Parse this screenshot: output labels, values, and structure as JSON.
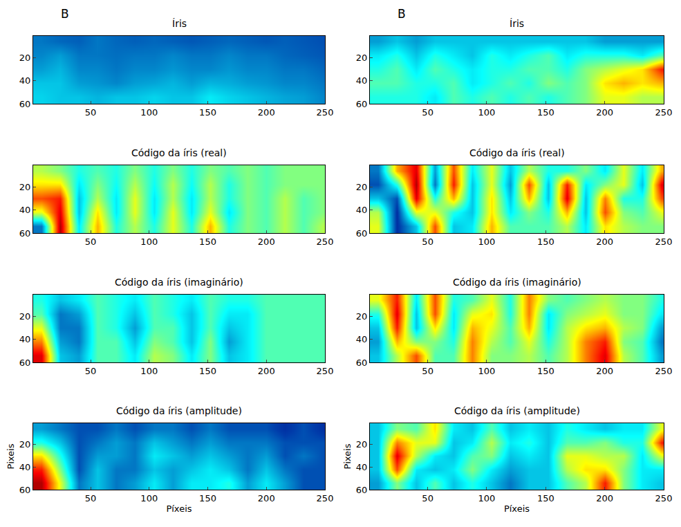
{
  "panel_labels": [
    "B",
    "B"
  ],
  "chart_data": [
    {
      "type": "heatmap",
      "title": "Íris",
      "xlim": [
        1,
        250
      ],
      "ylim": [
        1,
        60
      ],
      "xticks": [
        50,
        100,
        150,
        200,
        250
      ],
      "yticks": [
        20,
        40,
        60
      ],
      "zlim": [
        0,
        1
      ],
      "x": [
        8,
        24,
        40,
        56,
        72,
        88,
        104,
        120,
        136,
        152,
        168,
        184,
        200,
        216,
        232,
        248
      ],
      "y": [
        6,
        18,
        30,
        42,
        54
      ],
      "z": [
        [
          0.2,
          0.18,
          0.17,
          0.2,
          0.18,
          0.17,
          0.18,
          0.17,
          0.16,
          0.17,
          0.18,
          0.17,
          0.16,
          0.17,
          0.16,
          0.15
        ],
        [
          0.22,
          0.25,
          0.2,
          0.2,
          0.19,
          0.2,
          0.2,
          0.22,
          0.2,
          0.2,
          0.22,
          0.2,
          0.2,
          0.18,
          0.17,
          0.16
        ],
        [
          0.25,
          0.28,
          0.22,
          0.22,
          0.2,
          0.22,
          0.22,
          0.24,
          0.22,
          0.22,
          0.24,
          0.22,
          0.22,
          0.2,
          0.2,
          0.18
        ],
        [
          0.3,
          0.3,
          0.25,
          0.24,
          0.22,
          0.25,
          0.26,
          0.28,
          0.25,
          0.28,
          0.27,
          0.25,
          0.24,
          0.22,
          0.22,
          0.2
        ],
        [
          0.32,
          0.3,
          0.3,
          0.28,
          0.3,
          0.3,
          0.32,
          0.3,
          0.3,
          0.35,
          0.32,
          0.3,
          0.28,
          0.26,
          0.25,
          0.22
        ]
      ]
    },
    {
      "type": "heatmap",
      "title": "Código da íris (real)",
      "xlim": [
        1,
        250
      ],
      "ylim": [
        1,
        60
      ],
      "xticks": [
        50,
        100,
        150,
        200,
        250
      ],
      "yticks": [
        20,
        40,
        60
      ],
      "zlim": [
        0,
        1
      ],
      "x": [
        8,
        24,
        40,
        56,
        72,
        88,
        104,
        120,
        136,
        152,
        168,
        184,
        200,
        216,
        232,
        248
      ],
      "y": [
        6,
        18,
        30,
        42,
        54
      ],
      "z": [
        [
          0.55,
          0.5,
          0.4,
          0.45,
          0.4,
          0.5,
          0.4,
          0.5,
          0.4,
          0.5,
          0.45,
          0.5,
          0.45,
          0.5,
          0.5,
          0.5
        ],
        [
          0.65,
          0.65,
          0.35,
          0.5,
          0.38,
          0.55,
          0.38,
          0.55,
          0.38,
          0.55,
          0.4,
          0.5,
          0.45,
          0.5,
          0.5,
          0.5
        ],
        [
          0.8,
          0.85,
          0.3,
          0.55,
          0.35,
          0.6,
          0.35,
          0.55,
          0.35,
          0.55,
          0.4,
          0.5,
          0.45,
          0.55,
          0.45,
          0.5
        ],
        [
          0.6,
          0.9,
          0.3,
          0.65,
          0.35,
          0.6,
          0.35,
          0.6,
          0.35,
          0.6,
          0.35,
          0.5,
          0.45,
          0.55,
          0.45,
          0.5
        ],
        [
          0.2,
          0.95,
          0.35,
          0.7,
          0.4,
          0.55,
          0.4,
          0.6,
          0.4,
          0.7,
          0.4,
          0.5,
          0.45,
          0.55,
          0.45,
          0.55
        ]
      ]
    },
    {
      "type": "heatmap",
      "title": "Código da íris (imaginário)",
      "xlim": [
        1,
        250
      ],
      "ylim": [
        1,
        60
      ],
      "xticks": [
        50,
        100,
        150,
        200,
        250
      ],
      "yticks": [
        20,
        40,
        60
      ],
      "zlim": [
        0,
        1
      ],
      "x": [
        8,
        24,
        40,
        56,
        72,
        88,
        104,
        120,
        136,
        152,
        168,
        184,
        200,
        216,
        232,
        248
      ],
      "y": [
        6,
        18,
        30,
        42,
        54
      ],
      "z": [
        [
          0.4,
          0.3,
          0.35,
          0.45,
          0.4,
          0.35,
          0.45,
          0.4,
          0.35,
          0.45,
          0.4,
          0.4,
          0.45,
          0.45,
          0.45,
          0.45
        ],
        [
          0.45,
          0.2,
          0.25,
          0.45,
          0.4,
          0.3,
          0.45,
          0.4,
          0.3,
          0.45,
          0.35,
          0.35,
          0.45,
          0.45,
          0.45,
          0.45
        ],
        [
          0.6,
          0.2,
          0.2,
          0.45,
          0.4,
          0.25,
          0.45,
          0.45,
          0.3,
          0.45,
          0.3,
          0.35,
          0.45,
          0.45,
          0.45,
          0.45
        ],
        [
          0.75,
          0.25,
          0.2,
          0.45,
          0.45,
          0.3,
          0.5,
          0.45,
          0.3,
          0.5,
          0.25,
          0.35,
          0.45,
          0.45,
          0.45,
          0.45
        ],
        [
          0.9,
          0.3,
          0.25,
          0.45,
          0.45,
          0.35,
          0.55,
          0.5,
          0.35,
          0.5,
          0.3,
          0.35,
          0.45,
          0.45,
          0.45,
          0.45
        ]
      ]
    },
    {
      "type": "heatmap",
      "title": "Código da íris (amplitude)",
      "xlabel": "Píxeis",
      "ylabel": "Pixeis",
      "xlim": [
        1,
        250
      ],
      "ylim": [
        1,
        60
      ],
      "xticks": [
        50,
        100,
        150,
        200,
        250
      ],
      "yticks": [
        20,
        40,
        60
      ],
      "zlim": [
        0,
        1
      ],
      "x": [
        8,
        24,
        40,
        56,
        72,
        88,
        104,
        120,
        136,
        152,
        168,
        184,
        200,
        216,
        232,
        248
      ],
      "y": [
        6,
        18,
        30,
        42,
        54
      ],
      "z": [
        [
          0.25,
          0.2,
          0.15,
          0.15,
          0.2,
          0.15,
          0.2,
          0.2,
          0.15,
          0.2,
          0.15,
          0.15,
          0.15,
          0.1,
          0.15,
          0.1
        ],
        [
          0.4,
          0.3,
          0.15,
          0.2,
          0.25,
          0.2,
          0.3,
          0.25,
          0.2,
          0.25,
          0.2,
          0.2,
          0.2,
          0.15,
          0.15,
          0.15
        ],
        [
          0.65,
          0.4,
          0.15,
          0.25,
          0.25,
          0.2,
          0.35,
          0.3,
          0.25,
          0.3,
          0.25,
          0.2,
          0.25,
          0.15,
          0.2,
          0.15
        ],
        [
          0.85,
          0.5,
          0.15,
          0.3,
          0.2,
          0.2,
          0.3,
          0.25,
          0.3,
          0.35,
          0.3,
          0.2,
          0.3,
          0.2,
          0.15,
          0.15
        ],
        [
          0.95,
          0.6,
          0.2,
          0.3,
          0.2,
          0.25,
          0.35,
          0.25,
          0.35,
          0.35,
          0.4,
          0.25,
          0.35,
          0.25,
          0.15,
          0.15
        ]
      ]
    },
    {
      "type": "heatmap",
      "title": "Íris",
      "xlim": [
        1,
        250
      ],
      "ylim": [
        1,
        60
      ],
      "xticks": [
        50,
        100,
        150,
        200,
        250
      ],
      "yticks": [
        20,
        40,
        60
      ],
      "zlim": [
        0,
        1
      ],
      "x": [
        8,
        24,
        40,
        56,
        72,
        88,
        104,
        120,
        136,
        152,
        168,
        184,
        200,
        216,
        232,
        248
      ],
      "y": [
        6,
        18,
        30,
        42,
        54
      ],
      "z": [
        [
          0.25,
          0.3,
          0.25,
          0.3,
          0.3,
          0.3,
          0.3,
          0.3,
          0.3,
          0.3,
          0.3,
          0.3,
          0.25,
          0.25,
          0.25,
          0.25
        ],
        [
          0.35,
          0.4,
          0.3,
          0.4,
          0.35,
          0.3,
          0.4,
          0.35,
          0.4,
          0.45,
          0.35,
          0.4,
          0.4,
          0.4,
          0.35,
          0.45
        ],
        [
          0.4,
          0.45,
          0.35,
          0.45,
          0.4,
          0.35,
          0.4,
          0.4,
          0.45,
          0.45,
          0.4,
          0.5,
          0.55,
          0.6,
          0.65,
          0.85
        ],
        [
          0.45,
          0.45,
          0.4,
          0.4,
          0.45,
          0.35,
          0.4,
          0.45,
          0.4,
          0.5,
          0.45,
          0.5,
          0.65,
          0.7,
          0.65,
          0.7
        ],
        [
          0.4,
          0.4,
          0.4,
          0.35,
          0.45,
          0.4,
          0.45,
          0.4,
          0.45,
          0.4,
          0.45,
          0.5,
          0.6,
          0.6,
          0.55,
          0.55
        ]
      ]
    },
    {
      "type": "heatmap",
      "title": "Código da íris (real)",
      "xlim": [
        1,
        250
      ],
      "ylim": [
        1,
        60
      ],
      "xticks": [
        50,
        100,
        150,
        200,
        250
      ],
      "yticks": [
        20,
        40,
        60
      ],
      "zlim": [
        0,
        1
      ],
      "x": [
        8,
        24,
        40,
        56,
        72,
        88,
        104,
        120,
        136,
        152,
        168,
        184,
        200,
        216,
        232,
        248
      ],
      "y": [
        6,
        18,
        30,
        42,
        54
      ],
      "z": [
        [
          0.2,
          0.7,
          0.9,
          0.25,
          0.8,
          0.35,
          0.6,
          0.3,
          0.55,
          0.4,
          0.4,
          0.5,
          0.35,
          0.6,
          0.35,
          0.7
        ],
        [
          0.15,
          0.4,
          0.95,
          0.2,
          0.85,
          0.3,
          0.6,
          0.25,
          0.8,
          0.3,
          0.85,
          0.35,
          0.5,
          0.6,
          0.3,
          0.9
        ],
        [
          0.3,
          0.15,
          0.9,
          0.4,
          0.7,
          0.3,
          0.65,
          0.3,
          0.7,
          0.3,
          0.9,
          0.3,
          0.75,
          0.4,
          0.4,
          0.8
        ],
        [
          0.55,
          0.1,
          0.6,
          0.6,
          0.4,
          0.3,
          0.65,
          0.35,
          0.5,
          0.4,
          0.7,
          0.3,
          0.8,
          0.5,
          0.45,
          0.6
        ],
        [
          0.6,
          0.1,
          0.3,
          0.8,
          0.3,
          0.35,
          0.7,
          0.45,
          0.45,
          0.45,
          0.55,
          0.35,
          0.65,
          0.55,
          0.5,
          0.5
        ]
      ]
    },
    {
      "type": "heatmap",
      "title": "Código da íris (imaginário)",
      "xlim": [
        1,
        250
      ],
      "ylim": [
        1,
        60
      ],
      "xticks": [
        50,
        100,
        150,
        200,
        250
      ],
      "yticks": [
        20,
        40,
        60
      ],
      "zlim": [
        0,
        1
      ],
      "x": [
        8,
        24,
        40,
        56,
        72,
        88,
        104,
        120,
        136,
        152,
        168,
        184,
        200,
        216,
        232,
        248
      ],
      "y": [
        6,
        18,
        30,
        42,
        54
      ],
      "z": [
        [
          0.6,
          0.85,
          0.35,
          0.8,
          0.4,
          0.45,
          0.6,
          0.4,
          0.75,
          0.5,
          0.45,
          0.5,
          0.55,
          0.5,
          0.5,
          0.4
        ],
        [
          0.4,
          0.9,
          0.3,
          0.8,
          0.35,
          0.6,
          0.65,
          0.4,
          0.75,
          0.35,
          0.5,
          0.55,
          0.6,
          0.5,
          0.5,
          0.35
        ],
        [
          0.3,
          0.85,
          0.3,
          0.65,
          0.35,
          0.7,
          0.6,
          0.45,
          0.7,
          0.35,
          0.55,
          0.65,
          0.7,
          0.55,
          0.5,
          0.25
        ],
        [
          0.25,
          0.7,
          0.5,
          0.5,
          0.4,
          0.75,
          0.55,
          0.45,
          0.6,
          0.4,
          0.55,
          0.75,
          0.85,
          0.5,
          0.45,
          0.2
        ],
        [
          0.3,
          0.55,
          0.8,
          0.45,
          0.45,
          0.75,
          0.5,
          0.5,
          0.55,
          0.45,
          0.55,
          0.75,
          0.9,
          0.55,
          0.45,
          0.25
        ]
      ]
    },
    {
      "type": "heatmap",
      "title": "Código da íris (amplitude)",
      "xlabel": "Píxeis",
      "ylabel": "Pixeis",
      "xlim": [
        1,
        250
      ],
      "ylim": [
        1,
        60
      ],
      "xticks": [
        50,
        100,
        150,
        200,
        250
      ],
      "yticks": [
        20,
        40,
        60
      ],
      "zlim": [
        0,
        1
      ],
      "x": [
        8,
        24,
        40,
        56,
        72,
        88,
        104,
        120,
        136,
        152,
        168,
        184,
        200,
        216,
        232,
        248
      ],
      "y": [
        6,
        18,
        30,
        42,
        54
      ],
      "z": [
        [
          0.3,
          0.5,
          0.45,
          0.65,
          0.35,
          0.3,
          0.45,
          0.3,
          0.35,
          0.3,
          0.4,
          0.35,
          0.3,
          0.35,
          0.35,
          0.6
        ],
        [
          0.3,
          0.75,
          0.6,
          0.6,
          0.3,
          0.35,
          0.55,
          0.35,
          0.4,
          0.3,
          0.45,
          0.45,
          0.5,
          0.4,
          0.4,
          0.85
        ],
        [
          0.3,
          0.9,
          0.55,
          0.35,
          0.3,
          0.45,
          0.5,
          0.3,
          0.35,
          0.3,
          0.6,
          0.6,
          0.55,
          0.55,
          0.35,
          0.6
        ],
        [
          0.3,
          0.8,
          0.35,
          0.3,
          0.35,
          0.5,
          0.35,
          0.25,
          0.3,
          0.3,
          0.55,
          0.65,
          0.65,
          0.5,
          0.35,
          0.35
        ],
        [
          0.25,
          0.5,
          0.3,
          0.45,
          0.3,
          0.4,
          0.3,
          0.2,
          0.3,
          0.3,
          0.45,
          0.55,
          0.85,
          0.5,
          0.35,
          0.3
        ]
      ]
    }
  ]
}
